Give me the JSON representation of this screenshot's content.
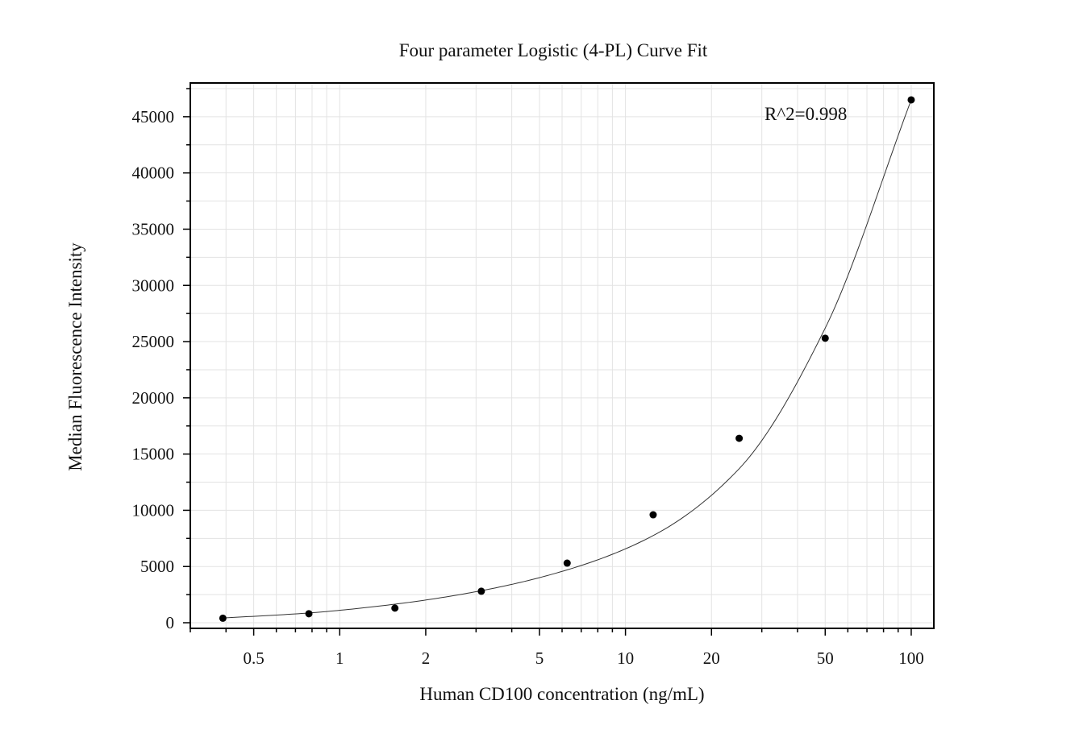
{
  "chart_data": {
    "type": "scatter",
    "title": "Four parameter Logistic (4-PL) Curve Fit",
    "xlabel": "Human CD100 concentration (ng/mL)",
    "ylabel": "Median Fluorescence Intensity",
    "x_scale": "log10",
    "xlim": [
      0.3,
      120
    ],
    "ylim": [
      -500,
      48000
    ],
    "x_ticks": [
      0.5,
      1,
      2,
      5,
      10,
      20,
      50,
      100
    ],
    "x_tick_labels": [
      "0.5",
      "1",
      "2",
      "5",
      "10",
      "20",
      "50",
      "100"
    ],
    "y_ticks": [
      0,
      5000,
      10000,
      15000,
      20000,
      25000,
      30000,
      35000,
      40000,
      45000
    ],
    "y_tick_labels": [
      "0",
      "5000",
      "10000",
      "15000",
      "20000",
      "25000",
      "30000",
      "35000",
      "40000",
      "45000"
    ],
    "grid": true,
    "annotation": "R^2=0.998",
    "series": [
      {
        "marker": "dot",
        "x": [
          0.39,
          0.78,
          1.56,
          3.13,
          6.25,
          12.5,
          25,
          50,
          100
        ],
        "y": [
          400,
          800,
          1300,
          2800,
          5300,
          9600,
          16400,
          25300,
          46500
        ]
      }
    ],
    "fit_curve": {
      "model": "4PL",
      "x": [
        0.39,
        0.78,
        1.56,
        3.13,
        6.25,
        12.5,
        25,
        50,
        100
      ],
      "y": [
        420,
        870,
        1650,
        2850,
        4700,
        7750,
        13700,
        26200,
        46500
      ]
    },
    "colors": {
      "points": "#000000",
      "curve": "#333333",
      "grid": "#e3e3e3",
      "frame": "#000000"
    }
  }
}
